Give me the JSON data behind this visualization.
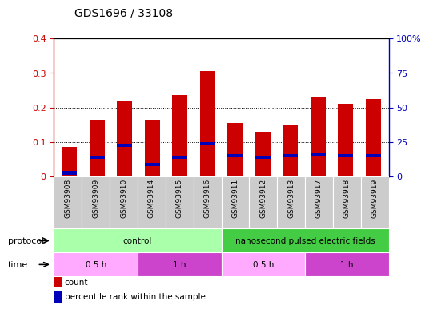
{
  "title": "GDS1696 / 33108",
  "samples": [
    "GSM93908",
    "GSM93909",
    "GSM93910",
    "GSM93914",
    "GSM93915",
    "GSM93916",
    "GSM93911",
    "GSM93912",
    "GSM93913",
    "GSM93917",
    "GSM93918",
    "GSM93919"
  ],
  "count_values": [
    0.085,
    0.165,
    0.22,
    0.165,
    0.235,
    0.305,
    0.155,
    0.13,
    0.15,
    0.23,
    0.21,
    0.225
  ],
  "percentile_values": [
    0.01,
    0.055,
    0.09,
    0.035,
    0.055,
    0.095,
    0.06,
    0.055,
    0.06,
    0.065,
    0.06,
    0.06
  ],
  "ylim_left": [
    0,
    0.4
  ],
  "ylim_right": [
    0,
    100
  ],
  "yticks_left": [
    0,
    0.1,
    0.2,
    0.3,
    0.4
  ],
  "yticks_right": [
    0,
    25,
    50,
    75,
    100
  ],
  "ytick_labels_left": [
    "0",
    "0.1",
    "0.2",
    "0.3",
    "0.4"
  ],
  "ytick_labels_right": [
    "0",
    "25",
    "50",
    "75",
    "100%"
  ],
  "count_color": "#cc0000",
  "percentile_color": "#0000bb",
  "bar_width": 0.55,
  "protocol_row": [
    {
      "label": "control",
      "start": 0,
      "end": 6,
      "color": "#aaffaa"
    },
    {
      "label": "nanosecond pulsed electric fields",
      "start": 6,
      "end": 12,
      "color": "#44cc44"
    }
  ],
  "time_row": [
    {
      "label": "0.5 h",
      "start": 0,
      "end": 3,
      "color": "#ffaaff"
    },
    {
      "label": "1 h",
      "start": 3,
      "end": 6,
      "color": "#cc44cc"
    },
    {
      "label": "0.5 h",
      "start": 6,
      "end": 9,
      "color": "#ffaaff"
    },
    {
      "label": "1 h",
      "start": 9,
      "end": 12,
      "color": "#cc44cc"
    }
  ],
  "legend_items": [
    {
      "label": "count",
      "color": "#cc0000"
    },
    {
      "label": "percentile rank within the sample",
      "color": "#0000bb"
    }
  ],
  "protocol_label": "protocol",
  "time_label": "time",
  "background_color": "#ffffff",
  "plot_bg_color": "#ffffff",
  "tick_label_color_left": "#cc0000",
  "tick_label_color_right": "#0000bb",
  "xbg_color": "#cccccc",
  "xbg_sep_color": "#ffffff"
}
